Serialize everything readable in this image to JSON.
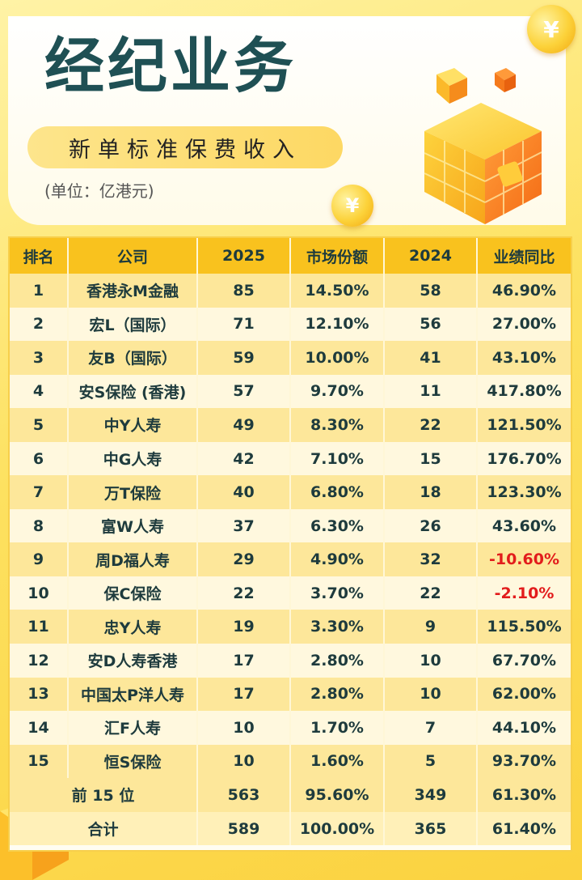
{
  "header": {
    "title": "经纪业务",
    "subtitle": "新单标准保费收入",
    "unit": "(单位：亿港元)"
  },
  "table": {
    "columns": [
      "排名",
      "公司",
      "2025",
      "市场份额",
      "2024",
      "业绩同比"
    ],
    "rows": [
      {
        "rank": "1",
        "company": "香港永M金融",
        "y2025": "85",
        "share": "14.50%",
        "y2024": "58",
        "yoy": "46.90%"
      },
      {
        "rank": "2",
        "company": "宏L（国际）",
        "y2025": "71",
        "share": "12.10%",
        "y2024": "56",
        "yoy": "27.00%"
      },
      {
        "rank": "3",
        "company": "友B（国际）",
        "y2025": "59",
        "share": "10.00%",
        "y2024": "41",
        "yoy": "43.10%"
      },
      {
        "rank": "4",
        "company": "安S保险 (香港)",
        "y2025": "57",
        "share": "9.70%",
        "y2024": "11",
        "yoy": "417.80%"
      },
      {
        "rank": "5",
        "company": "中Y人寿",
        "y2025": "49",
        "share": "8.30%",
        "y2024": "22",
        "yoy": "121.50%"
      },
      {
        "rank": "6",
        "company": "中G人寿",
        "y2025": "42",
        "share": "7.10%",
        "y2024": "15",
        "yoy": "176.70%"
      },
      {
        "rank": "7",
        "company": "万T保险",
        "y2025": "40",
        "share": "6.80%",
        "y2024": "18",
        "yoy": "123.30%"
      },
      {
        "rank": "8",
        "company": "富W人寿",
        "y2025": "37",
        "share": "6.30%",
        "y2024": "26",
        "yoy": "43.60%"
      },
      {
        "rank": "9",
        "company": "周D福人寿",
        "y2025": "29",
        "share": "4.90%",
        "y2024": "32",
        "yoy": "-10.60%"
      },
      {
        "rank": "10",
        "company": "保C保险",
        "y2025": "22",
        "share": "3.70%",
        "y2024": "22",
        "yoy": "-2.10%"
      },
      {
        "rank": "11",
        "company": "忠Y人寿",
        "y2025": "19",
        "share": "3.30%",
        "y2024": "9",
        "yoy": "115.50%"
      },
      {
        "rank": "12",
        "company": "安D人寿香港",
        "y2025": "17",
        "share": "2.80%",
        "y2024": "10",
        "yoy": "67.70%"
      },
      {
        "rank": "13",
        "company": "中国太P洋人寿",
        "y2025": "17",
        "share": "2.80%",
        "y2024": "10",
        "yoy": "62.00%"
      },
      {
        "rank": "14",
        "company": "汇F人寿",
        "y2025": "10",
        "share": "1.70%",
        "y2024": "7",
        "yoy": "44.10%"
      },
      {
        "rank": "15",
        "company": "恒S保险",
        "y2025": "10",
        "share": "1.60%",
        "y2024": "5",
        "yoy": "93.70%"
      }
    ],
    "summary": [
      {
        "label": "前 15 位",
        "y2025": "563",
        "share": "95.60%",
        "y2024": "349",
        "yoy": "61.30%"
      },
      {
        "label": "合计",
        "y2025": "589",
        "share": "100.00%",
        "y2024": "365",
        "yoy": "61.40%"
      }
    ]
  },
  "decor": {
    "coin_symbol": "¥",
    "negative_color": "#e21c1c",
    "accent_color": "#f9c21e",
    "title_color": "#1f5054"
  }
}
